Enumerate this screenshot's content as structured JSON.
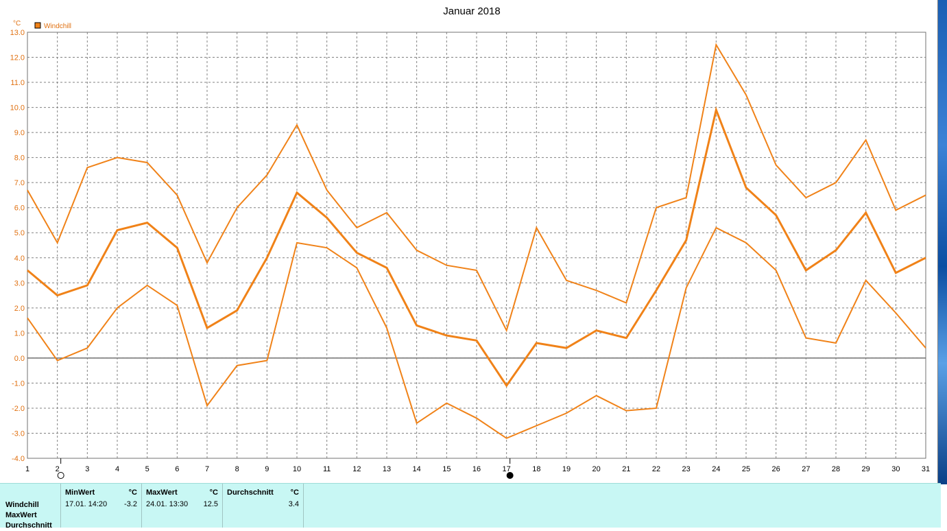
{
  "chart_data": {
    "type": "line",
    "title": "Januar 2018",
    "ylabel": "°C",
    "legend": "Windchill",
    "legend_placement": "top-left",
    "grid": true,
    "ylim": [
      -4.0,
      13.0
    ],
    "x": [
      1,
      2,
      3,
      4,
      5,
      6,
      7,
      8,
      9,
      10,
      11,
      12,
      13,
      14,
      15,
      16,
      17,
      18,
      19,
      20,
      21,
      22,
      23,
      24,
      25,
      26,
      27,
      28,
      29,
      30,
      31
    ],
    "series": [
      {
        "role": "max",
        "values": [
          6.7,
          4.6,
          7.6,
          8.0,
          7.8,
          6.5,
          3.8,
          6.0,
          7.3,
          9.3,
          6.7,
          5.2,
          5.8,
          4.3,
          3.7,
          3.5,
          1.1,
          5.2,
          3.1,
          2.7,
          2.2,
          6.0,
          6.4,
          12.5,
          10.5,
          7.7,
          6.4,
          7.0,
          8.7,
          5.9,
          6.5
        ]
      },
      {
        "role": "avg",
        "values": [
          3.5,
          2.5,
          2.9,
          5.1,
          5.4,
          4.4,
          1.2,
          1.9,
          4.0,
          6.6,
          5.6,
          4.2,
          3.6,
          1.3,
          0.9,
          0.7,
          -1.1,
          0.6,
          0.4,
          1.1,
          0.8,
          2.7,
          4.7,
          9.9,
          6.8,
          5.7,
          3.5,
          4.3,
          5.8,
          3.4,
          4.0
        ]
      },
      {
        "role": "min",
        "values": [
          1.6,
          -0.1,
          0.4,
          2.0,
          2.9,
          2.1,
          -1.9,
          -0.3,
          -0.1,
          4.6,
          4.4,
          3.6,
          1.2,
          -2.6,
          -1.8,
          -2.4,
          -3.2,
          -2.7,
          -2.2,
          -1.5,
          -2.1,
          -2.0,
          2.8,
          5.2,
          4.6,
          3.5,
          0.8,
          0.6,
          3.1,
          1.8,
          0.4
        ]
      }
    ],
    "y_ticks": [
      "13.0",
      "12.0",
      "11.0",
      "10.0",
      "9.0",
      "8.0",
      "7.0",
      "6.0",
      "5.0",
      "4.0",
      "3.0",
      "2.0",
      "1.0",
      "0.0",
      "-1.0",
      "-2.0",
      "-3.0",
      "-4.0"
    ],
    "x_ticks": [
      "1",
      "2",
      "3",
      "4",
      "5",
      "6",
      "7",
      "8",
      "9",
      "10",
      "11",
      "12",
      "13",
      "14",
      "15",
      "16",
      "17",
      "18",
      "19",
      "20",
      "21",
      "22",
      "23",
      "24",
      "25",
      "26",
      "27",
      "28",
      "29",
      "30",
      "31"
    ],
    "moon_phases": [
      {
        "day": 2,
        "phase": "full"
      },
      {
        "day": 17,
        "phase": "new"
      }
    ],
    "colors": {
      "line": "#f08218",
      "grid": "#808080",
      "axis": "#707070",
      "label": "#e07010"
    }
  },
  "stats": {
    "row_labels": [
      "Windchill",
      "MaxWert",
      "Durchschnitt"
    ],
    "min": {
      "header": "MinWert",
      "unit": "°C",
      "date": "17.01.  14:20",
      "value": "-3.2"
    },
    "max": {
      "header": "MaxWert",
      "unit": "°C",
      "date": "24.01.  13:30",
      "value": "12.5"
    },
    "avg": {
      "header": "Durchschnitt",
      "unit": "°C",
      "value": "3.4"
    }
  }
}
